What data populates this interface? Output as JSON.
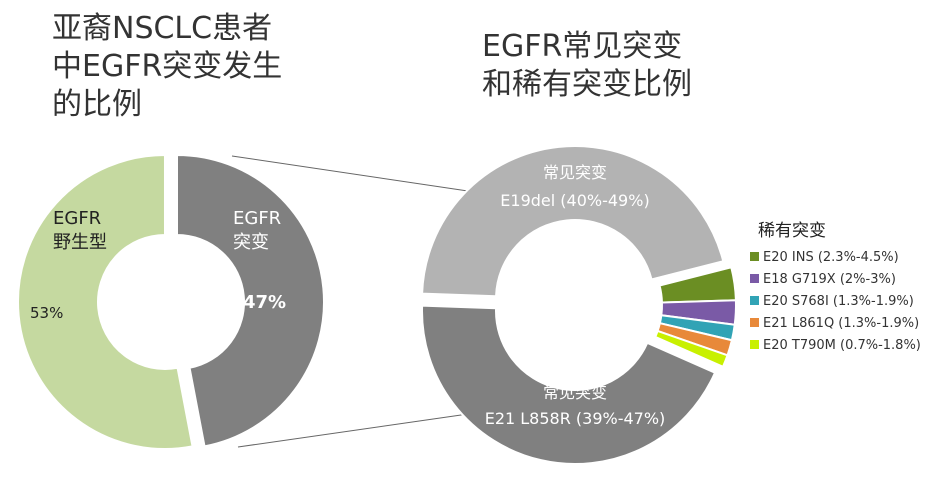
{
  "titles": {
    "left": "亚裔NSCLC患者中EGFR突变发生的比例",
    "right": "EGFR常见突变和稀有突变比例"
  },
  "chart_data": [
    {
      "type": "pie",
      "title": "亚裔NSCLC患者中EGFR突变发生的比例",
      "slices": [
        {
          "label_line1": "EGFR",
          "label_line2": "野生型",
          "value": 53,
          "display": "53%",
          "color": "#c5d9a0"
        },
        {
          "label_line1": "EGFR",
          "label_line2": "突变",
          "value": 47,
          "display": "47%",
          "color": "#808080"
        }
      ]
    },
    {
      "type": "pie",
      "title": "EGFR常见突变和稀有突变比例",
      "common": [
        {
          "label_line1": "常见突变",
          "label_line2": "E19del (40%-49%)",
          "value": 44.5,
          "color": "#b3b3b3"
        },
        {
          "label_line1": "常见突变",
          "label_line2": "E21 L858R (39%-47%)",
          "value": 43,
          "color": "#808080"
        }
      ],
      "rare_title": "稀有突变",
      "rare": [
        {
          "label": "E20 INS (2.3%-4.5%)",
          "value": 3.4,
          "color": "#6b8e23"
        },
        {
          "label": "E18 G719X (2%-3%)",
          "value": 2.5,
          "color": "#7a5aa6"
        },
        {
          "label": "E20 S768I (1.3%-1.9%)",
          "value": 1.6,
          "color": "#31a3b5"
        },
        {
          "label": "E21 L861Q (1.3%-1.9%)",
          "value": 1.6,
          "color": "#e8893a"
        },
        {
          "label": "E20 T790M (0.7%-1.8%)",
          "value": 1.25,
          "color": "#c8f000"
        }
      ]
    }
  ]
}
